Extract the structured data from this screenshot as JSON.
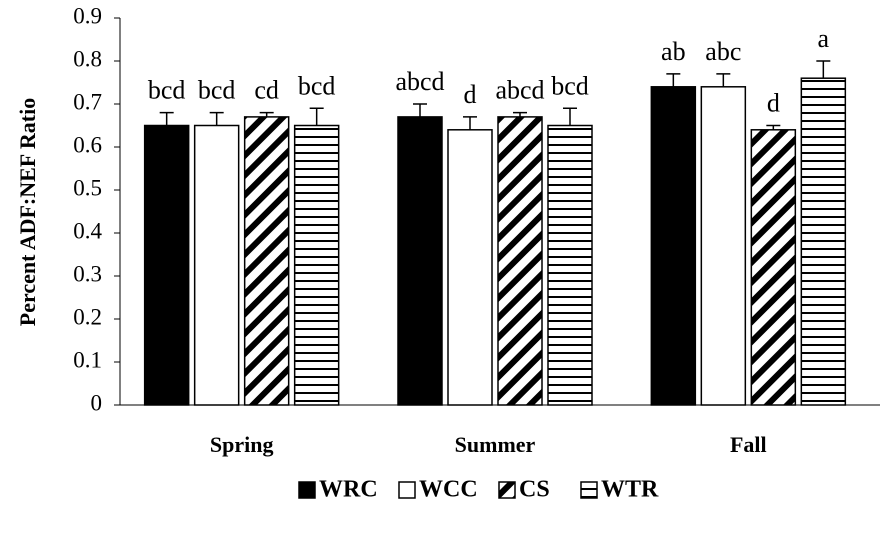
{
  "chart_data": {
    "type": "bar",
    "y_label": "Percent ADF:NEF Ratio",
    "categories": [
      "Spring",
      "Summer",
      "Fall"
    ],
    "series": [
      {
        "name": "WRC",
        "color": "#000000",
        "pattern": "solid",
        "values": [
          0.65,
          0.67,
          0.74
        ],
        "errors": [
          0.03,
          0.03,
          0.03
        ],
        "letters": [
          "bcd",
          "abcd",
          "ab"
        ]
      },
      {
        "name": "WCC",
        "color": "#ffffff",
        "pattern": "solid",
        "values": [
          0.65,
          0.64,
          0.74
        ],
        "errors": [
          0.03,
          0.03,
          0.03
        ],
        "letters": [
          "bcd",
          "d",
          "abc"
        ]
      },
      {
        "name": "CS",
        "color": "#000000",
        "pattern": "diagonal",
        "values": [
          0.67,
          0.67,
          0.64
        ],
        "errors": [
          0.01,
          0.01,
          0.01
        ],
        "letters": [
          "cd",
          "abcd",
          "d"
        ]
      },
      {
        "name": "WTR",
        "color": "#000000",
        "pattern": "horizontal",
        "values": [
          0.65,
          0.65,
          0.76
        ],
        "errors": [
          0.04,
          0.04,
          0.04
        ],
        "letters": [
          "bcd",
          "bcd",
          "a"
        ]
      }
    ],
    "ylim": [
      0,
      0.9
    ],
    "yticks": [
      0,
      0.1,
      0.2,
      0.3,
      0.4,
      0.5,
      0.6,
      0.7,
      0.8,
      0.9
    ],
    "legend": "bottom"
  }
}
